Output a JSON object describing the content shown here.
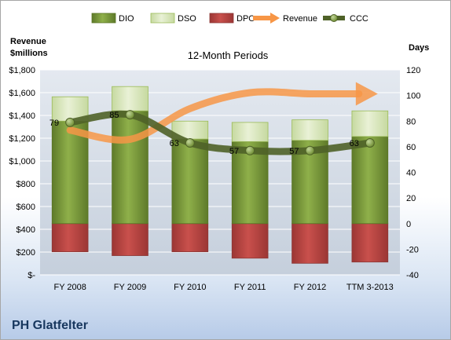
{
  "company": "PH Glatfelter",
  "chart_data": {
    "type": "bar",
    "subtitle": "12-Month Periods",
    "left_axis_title": [
      "Revenue",
      "$millions"
    ],
    "right_axis_title": "Days",
    "categories": [
      "FY 2008",
      "FY 2009",
      "FY 2010",
      "FY 2011",
      "FY 2012",
      "TTM 3-2013"
    ],
    "left_axis": {
      "min": 0,
      "max": 1800,
      "step": 200,
      "tick_labels": [
        "$-",
        "$200",
        "$400",
        "$600",
        "$800",
        "$1,000",
        "$1,200",
        "$1,400",
        "$1,600",
        "$1,800"
      ]
    },
    "right_axis": {
      "min": -40,
      "max": 120,
      "step": 20
    },
    "stacked_bars_days": {
      "DIO": [
        80,
        88,
        66,
        64,
        65,
        68
      ],
      "DSO": [
        19,
        19,
        14,
        15,
        16,
        20
      ],
      "DPO": [
        -22,
        -25,
        -22,
        -27,
        -31,
        -30
      ]
    },
    "series": [
      {
        "name": "DIO",
        "type": "bar",
        "color": "#77933c"
      },
      {
        "name": "DSO",
        "type": "bar",
        "color": "#d7e4bd"
      },
      {
        "name": "DPO",
        "type": "bar",
        "color": "#c0504d"
      },
      {
        "name": "Revenue",
        "type": "arrow-line",
        "axis": "left",
        "color": "#f79646",
        "values": [
          1270,
          1190,
          1460,
          1600,
          1590,
          1590
        ]
      },
      {
        "name": "CCC",
        "type": "line",
        "axis": "right",
        "color": "#4f6228",
        "values": [
          79,
          85,
          63,
          57,
          57,
          63
        ]
      }
    ],
    "ccc_labels": [
      "79",
      "85",
      "63",
      "57",
      "57",
      "63"
    ],
    "legend_position": "top",
    "grid": true
  }
}
